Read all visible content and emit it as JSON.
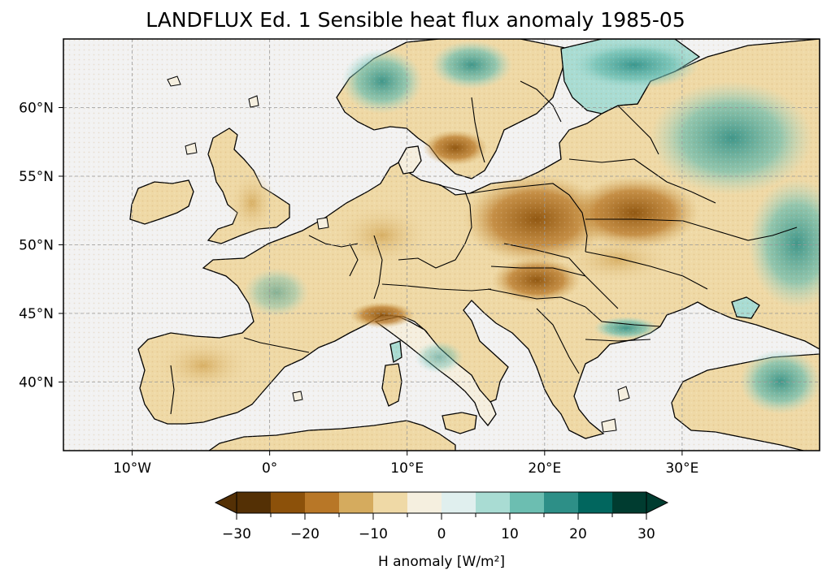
{
  "title": "LANDFLUX Ed. 1 Sensible heat flux anomaly 1985-05",
  "map": {
    "projection": "PlateCarree",
    "lon_range": [
      -15,
      40
    ],
    "lat_range": [
      35,
      65
    ],
    "lon_ticks": [
      {
        "lon": -10,
        "label": "10°W"
      },
      {
        "lon": 0,
        "label": "0°"
      },
      {
        "lon": 10,
        "label": "10°E"
      },
      {
        "lon": 20,
        "label": "20°E"
      },
      {
        "lon": 30,
        "label": "30°E"
      }
    ],
    "lat_ticks": [
      {
        "lat": 60,
        "label": "60°N"
      },
      {
        "lat": 55,
        "label": "55°N"
      },
      {
        "lat": 50,
        "label": "50°N"
      },
      {
        "lat": 45,
        "label": "45°N"
      },
      {
        "lat": 40,
        "label": "40°N"
      }
    ],
    "gridlines": true,
    "ocean_color": "#f2f2f2",
    "coastline_color": "#000000",
    "colormap": "BrBG",
    "data_summary": [
      {
        "region": "Poland / Belarus / Hungary / Germany",
        "sign": "negative",
        "approx": -20
      },
      {
        "region": "Scandinavia (south Sweden)",
        "sign": "negative",
        "approx": -20
      },
      {
        "region": "Iberia interior",
        "sign": "negative",
        "approx": -10
      },
      {
        "region": "Northern Italy",
        "sign": "negative",
        "approx": -15
      },
      {
        "region": "Western Russia / Finland / Norway coast",
        "sign": "positive",
        "approx": 15
      },
      {
        "region": "Romania / Bulgaria",
        "sign": "positive",
        "approx": 15
      }
    ]
  },
  "colorbar": {
    "label": "H anomaly [W/m²]",
    "levels": [
      -30,
      -25,
      -20,
      -15,
      -10,
      -5,
      0,
      5,
      10,
      15,
      20,
      25,
      30
    ],
    "tick_labels": [
      "−30",
      "−20",
      "−10",
      "0",
      "10",
      "20",
      "30"
    ],
    "tick_values": [
      -30,
      -20,
      -10,
      0,
      10,
      20,
      30
    ],
    "colors": [
      "#543005",
      "#8c510a",
      "#b87727",
      "#d5ab5e",
      "#efd9a6",
      "#f5efdf",
      "#e0efee",
      "#a9dcd3",
      "#6cbeb1",
      "#2d8f87",
      "#01665e",
      "#003c30"
    ],
    "extend": "both"
  }
}
